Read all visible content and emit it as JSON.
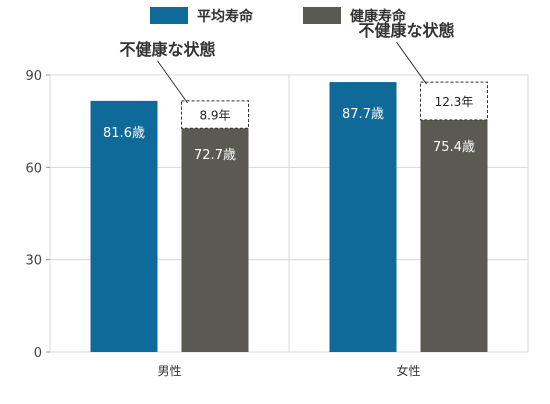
{
  "chart_data": {
    "type": "bar",
    "categories": [
      "男性",
      "女性"
    ],
    "series": [
      {
        "name": "平均寿命",
        "values": [
          81.6,
          87.7
        ],
        "labels": [
          "81.6歳",
          "87.7歳"
        ],
        "color": "#0f6a9a"
      },
      {
        "name": "健康寿命",
        "values": [
          72.7,
          75.4
        ],
        "labels": [
          "72.7歳",
          "75.4歳"
        ],
        "color": "#5a5a52"
      }
    ],
    "gap": {
      "values": [
        8.9,
        12.3
      ],
      "labels": [
        "8.9年",
        "12.3年"
      ]
    },
    "annotation": "不健康な状態",
    "ylim": [
      0,
      90
    ],
    "yticks": [
      0,
      30,
      60,
      90
    ],
    "legend_position": "top",
    "grid": true
  }
}
